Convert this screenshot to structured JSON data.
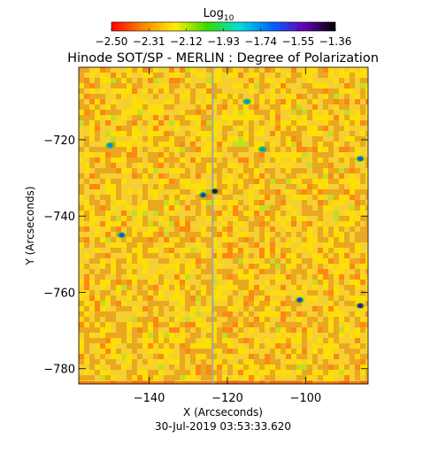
{
  "chart_data": {
    "type": "heatmap",
    "title": "Hinode SOT/SP - MERLIN : Degree of Polarization",
    "subtitle": "30-Jul-2019 03:53:33.620",
    "xlabel": "X (Arcseconds)",
    "ylabel": "Y (Arcseconds)",
    "xlim": [
      -158,
      -84
    ],
    "ylim": [
      -784,
      -701
    ],
    "x_ticks": [
      -140,
      -120,
      -100
    ],
    "y_ticks": [
      -720,
      -740,
      -760,
      -780
    ],
    "x_tick_labels": [
      "−140",
      "−120",
      "−100"
    ],
    "y_tick_labels": [
      "−720",
      "−740",
      "−760",
      "−780"
    ],
    "colorbar": {
      "title": "Log",
      "title_subscript": "10",
      "min": -2.5,
      "max": -1.36,
      "ticks": [
        -2.5,
        -2.31,
        -2.12,
        -1.93,
        -1.74,
        -1.55,
        -1.36
      ],
      "tick_labels": [
        "−2.50",
        "−2.31",
        "−2.12",
        "−1.93",
        "−1.74",
        "−1.55",
        "−1.36"
      ],
      "colors": [
        "#ff0000",
        "#ff8800",
        "#ffee00",
        "#33dd00",
        "#00dddd",
        "#0066ff",
        "#6600bb",
        "#000000"
      ]
    },
    "map": {
      "typical_level": -2.22,
      "background_colors": [
        "#e8a020",
        "#f4d030",
        "#ffe000"
      ],
      "features": [
        {
          "kind": "vertical_stripe",
          "x": -123.8,
          "value": -1.93
        },
        {
          "kind": "spot",
          "x": -126.2,
          "y": -734.5,
          "value": -1.6
        },
        {
          "kind": "spot",
          "x": -123.2,
          "y": -733.5,
          "value": -1.45
        },
        {
          "kind": "spot",
          "x": -111.0,
          "y": -722.5,
          "value": -1.74
        },
        {
          "kind": "spot",
          "x": -101.5,
          "y": -762.0,
          "value": -1.6
        },
        {
          "kind": "spot",
          "x": -86.0,
          "y": -763.5,
          "value": -1.5
        },
        {
          "kind": "spot",
          "x": -150.0,
          "y": -721.5,
          "value": -1.74
        },
        {
          "kind": "spot",
          "x": -147.0,
          "y": -745.0,
          "value": -1.65
        },
        {
          "kind": "spot",
          "x": -86.0,
          "y": -725.0,
          "value": -1.65
        },
        {
          "kind": "spot",
          "x": -115.0,
          "y": -710.0,
          "value": -1.74
        }
      ]
    }
  }
}
